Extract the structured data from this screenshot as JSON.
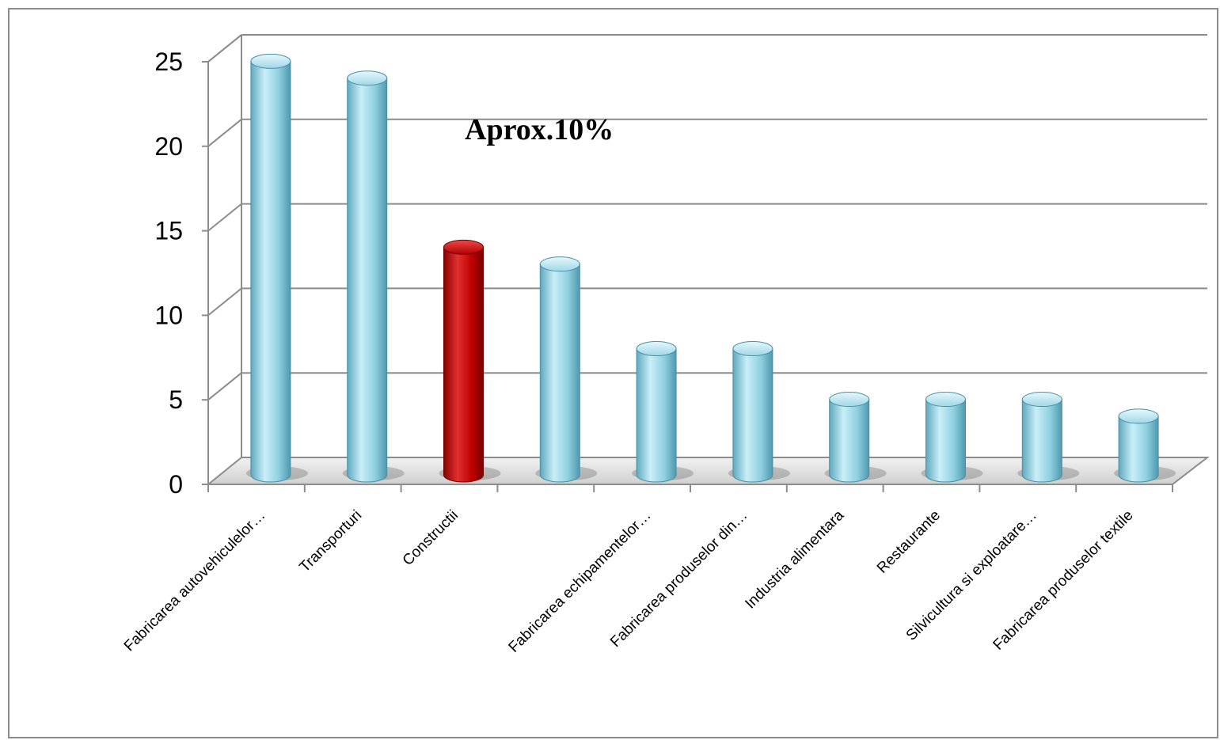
{
  "chart_data": {
    "type": "bar",
    "categories": [
      "Fabricarea autovehiculelor…",
      "Transporturi",
      "Constructii",
      "",
      "Fabricarea echipamentelor…",
      "Fabricarea produselor din…",
      "Industria alimentara",
      "Restaurante",
      "Silvicultura si exploatare…",
      "Fabricarea produselor textile"
    ],
    "values": [
      24,
      23,
      13,
      12,
      7,
      7,
      4,
      4,
      4,
      3
    ],
    "ylim": [
      0,
      25
    ],
    "yticks": [
      "0",
      "5",
      "10",
      "15",
      "20",
      "25"
    ],
    "grid": true,
    "annotation": "Aprox.10%",
    "highlight_index": 2,
    "colors": {
      "bar": "#8fd0e0",
      "highlight": "#c00000",
      "grid": "#8c8c8c"
    }
  }
}
